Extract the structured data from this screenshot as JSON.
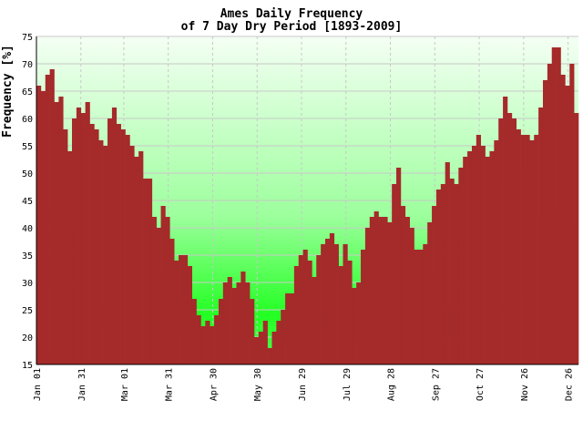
{
  "chart_data": {
    "type": "bar",
    "title": "Ames Daily Frequency",
    "subtitle": "of 7 Day Dry Period [1893-2009]",
    "y_label": "Frequency [%]",
    "color": "#a52a2a",
    "grid": true,
    "xlim": [
      0,
      366
    ],
    "ylim": [
      15,
      75
    ],
    "yticks": [
      15,
      20,
      25,
      30,
      35,
      40,
      45,
      50,
      55,
      60,
      65,
      70,
      75
    ],
    "xticks": [
      {
        "value": 0,
        "label": "Jan 01"
      },
      {
        "value": 30,
        "label": "Jan 31"
      },
      {
        "value": 59,
        "label": "Mar 01"
      },
      {
        "value": 89,
        "label": "Mar 31"
      },
      {
        "value": 119,
        "label": "Apr 30"
      },
      {
        "value": 149,
        "label": "May 30"
      },
      {
        "value": 179,
        "label": "Jun 29"
      },
      {
        "value": 209,
        "label": "Jul 29"
      },
      {
        "value": 239,
        "label": "Aug 28"
      },
      {
        "value": 269,
        "label": "Sep 27"
      },
      {
        "value": 299,
        "label": "Oct 27"
      },
      {
        "value": 329,
        "label": "Nov 26"
      },
      {
        "value": 359,
        "label": "Dec 26"
      }
    ],
    "x": [
      0,
      3,
      6,
      9,
      12,
      15,
      18,
      21,
      24,
      27,
      30,
      33,
      36,
      39,
      42,
      45,
      48,
      51,
      54,
      57,
      60,
      63,
      66,
      69,
      72,
      75,
      78,
      81,
      84,
      87,
      90,
      93,
      96,
      99,
      102,
      105,
      108,
      111,
      114,
      117,
      120,
      123,
      126,
      129,
      132,
      135,
      138,
      141,
      144,
      147,
      150,
      153,
      156,
      159,
      162,
      165,
      168,
      171,
      174,
      177,
      180,
      183,
      186,
      189,
      192,
      195,
      198,
      201,
      204,
      207,
      210,
      213,
      216,
      219,
      222,
      225,
      228,
      231,
      234,
      237,
      240,
      243,
      246,
      249,
      252,
      255,
      258,
      261,
      264,
      267,
      270,
      273,
      276,
      279,
      282,
      285,
      288,
      291,
      294,
      297,
      300,
      303,
      306,
      309,
      312,
      315,
      318,
      321,
      324,
      327,
      330,
      333,
      336,
      339,
      342,
      345,
      348,
      351,
      354,
      357,
      360,
      363
    ],
    "values": [
      66,
      65,
      68,
      69,
      63,
      64,
      58,
      54,
      60,
      62,
      61,
      63,
      59,
      58,
      56,
      55,
      60,
      62,
      59,
      58,
      57,
      55,
      53,
      54,
      49,
      49,
      42,
      40,
      44,
      42,
      38,
      34,
      35,
      35,
      33,
      27,
      24,
      22,
      23,
      22,
      24,
      27,
      30,
      31,
      29,
      30,
      32,
      30,
      27,
      20,
      21,
      23,
      18,
      21,
      23,
      25,
      28,
      28,
      33,
      35,
      36,
      34,
      31,
      35,
      37,
      38,
      39,
      37,
      33,
      37,
      34,
      29,
      30,
      36,
      40,
      42,
      43,
      42,
      42,
      41,
      48,
      51,
      44,
      42,
      40,
      36,
      36,
      37,
      41,
      44,
      47,
      48,
      52,
      49,
      48,
      51,
      53,
      54,
      55,
      57,
      55,
      53,
      54,
      56,
      60,
      64,
      61,
      60,
      58,
      57,
      57,
      56,
      57,
      62,
      67,
      70,
      73,
      73,
      68,
      66,
      70,
      61
    ]
  }
}
